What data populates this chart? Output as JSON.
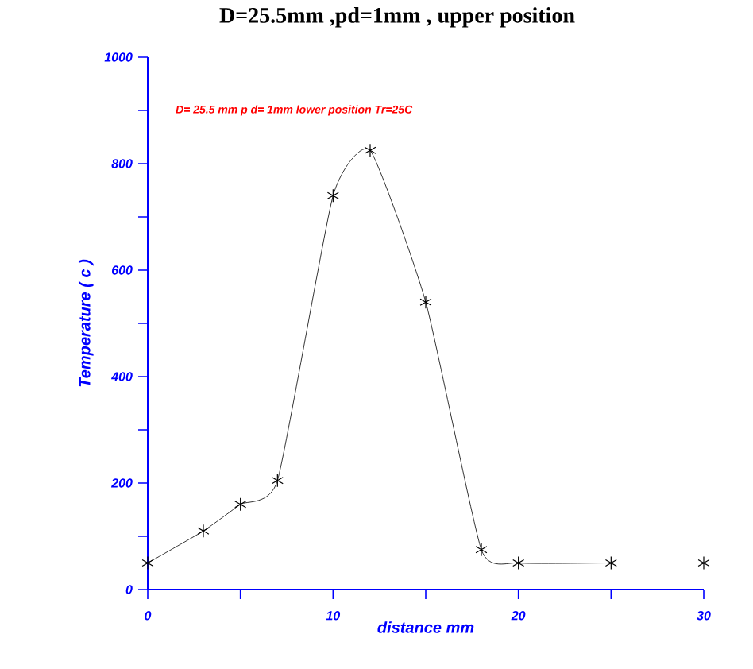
{
  "chart_data": {
    "type": "line",
    "title": "D=25.5mm ,pd=1mm , upper position",
    "xlabel": "distance   mm",
    "ylabel": "Temperature ( c )",
    "annotations": [
      "D= 25.5 mm  p d= 1mm  lower position  Tr=25C"
    ],
    "x": [
      0,
      3,
      5,
      7,
      10,
      12,
      15,
      18,
      20,
      25,
      30
    ],
    "values": [
      50,
      110,
      160,
      205,
      740,
      825,
      540,
      75,
      50,
      50,
      50
    ],
    "color": "#000000",
    "marker": "cross",
    "line_style": "solid",
    "xlim": [
      0,
      30
    ],
    "ylim": [
      0,
      1000
    ],
    "xticks": [
      0,
      {
        "value": 5,
        "label": null
      },
      10,
      {
        "value": 15,
        "label": null
      },
      20,
      {
        "value": 25,
        "label": null
      },
      30
    ],
    "yticks": [
      0,
      {
        "value": 100,
        "label": null
      },
      200,
      {
        "value": 300,
        "label": null
      },
      400,
      {
        "value": 500,
        "label": null
      },
      600,
      {
        "value": 700,
        "label": null
      },
      800,
      {
        "value": 900,
        "label": null
      },
      1000
    ]
  }
}
